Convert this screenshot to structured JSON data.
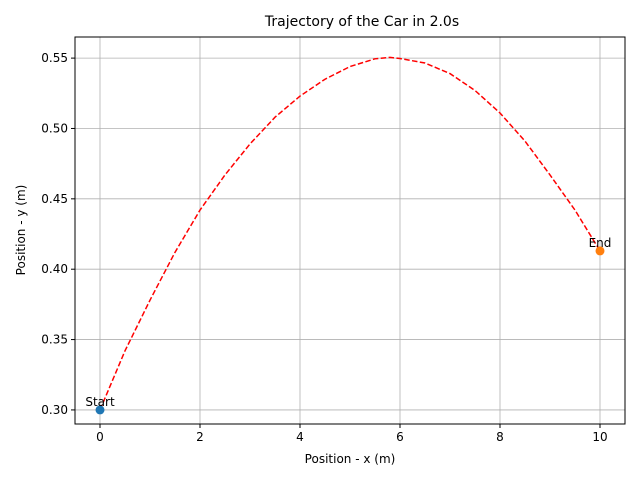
{
  "chart_data": {
    "type": "line",
    "title": "Trajectory of the Car in 2.0s",
    "xlabel": "Position - x (m)",
    "ylabel": "Position - y (m)",
    "xlim": [
      -0.5,
      10.5
    ],
    "ylim": [
      0.29,
      0.565
    ],
    "xticks": [
      0,
      2,
      4,
      6,
      8,
      10
    ],
    "yticks": [
      0.3,
      0.35,
      0.4,
      0.45,
      0.5,
      0.55
    ],
    "xtick_labels": [
      "0",
      "2",
      "4",
      "6",
      "8",
      "10"
    ],
    "ytick_labels": [
      "0.30",
      "0.35",
      "0.40",
      "0.45",
      "0.50",
      "0.55"
    ],
    "grid": true,
    "series": [
      {
        "style": "dashed",
        "color": "#ff0000",
        "x": [
          0,
          0.5,
          1,
          1.5,
          2,
          2.5,
          3,
          3.5,
          4,
          4.5,
          5,
          5.5,
          5.8,
          6,
          6.5,
          7,
          7.5,
          8,
          8.5,
          9,
          9.5,
          10
        ],
        "y": [
          0.3,
          0.342,
          0.378,
          0.412,
          0.442,
          0.467,
          0.489,
          0.508,
          0.523,
          0.535,
          0.544,
          0.5495,
          0.5505,
          0.5497,
          0.5465,
          0.539,
          0.527,
          0.511,
          0.491,
          0.467,
          0.442,
          0.413
        ]
      }
    ],
    "points": [
      {
        "label": "Start",
        "x": 0,
        "y": 0.3,
        "color": "#1f77b4"
      },
      {
        "label": "End",
        "x": 10,
        "y": 0.413,
        "color": "#ff7f0e"
      }
    ]
  }
}
